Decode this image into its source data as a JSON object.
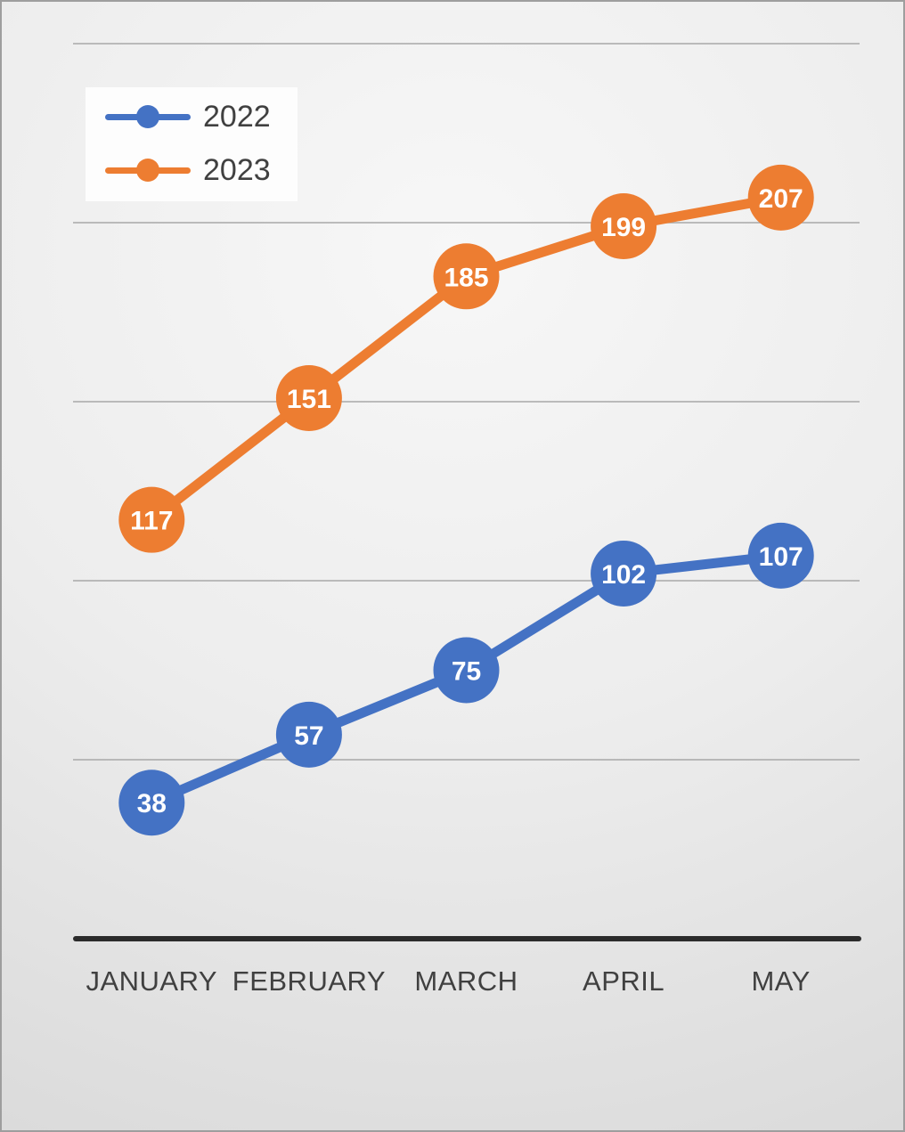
{
  "chart_data": {
    "type": "line",
    "categories": [
      "JANUARY",
      "FEBRUARY",
      "MARCH",
      "APRIL",
      "MAY"
    ],
    "series": [
      {
        "name": "2022",
        "color": "#4472C4",
        "values": [
          38,
          57,
          75,
          102,
          107
        ]
      },
      {
        "name": "2023",
        "color": "#ED7D31",
        "values": [
          117,
          151,
          185,
          199,
          207
        ]
      }
    ],
    "ylim": [
      0,
      250
    ],
    "gridline_step": 50,
    "grid": true,
    "legend_position": "top-left",
    "data_labels": "inside-marker",
    "colors": {
      "gridline": "#a8a8a8",
      "axis": "#2b2b2b",
      "axis_label_text": "#404040",
      "data_label_text": "#ffffff"
    }
  }
}
